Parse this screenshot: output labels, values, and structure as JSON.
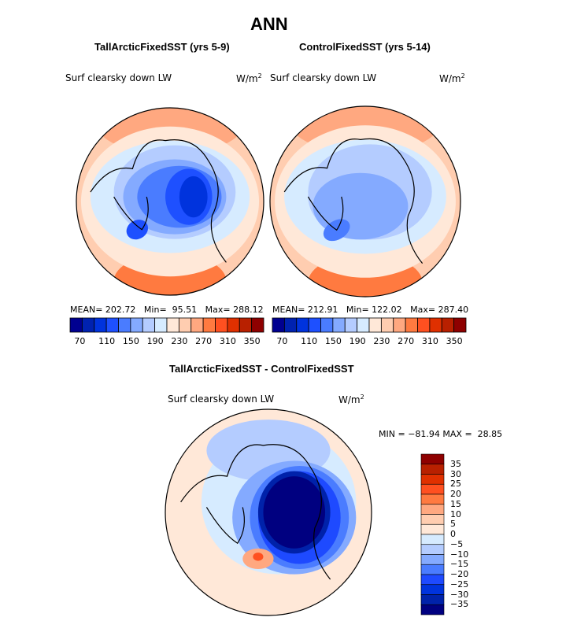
{
  "title": "ANN",
  "panels": [
    {
      "subtitle": "TallArcticFixedSST (yrs 5-9)",
      "variable": "Surf clearsky down LW",
      "units": "W/m",
      "units_sup": "2",
      "stats": {
        "mean_label": "MEAN=",
        "mean": "202.72",
        "min_label": "Min=",
        "min": "95.51",
        "max_label": "Max=",
        "max": "288.12"
      }
    },
    {
      "subtitle": "ControlFixedSST (yrs 5-14)",
      "variable": "Surf clearsky down LW",
      "units": "W/m",
      "units_sup": "2",
      "stats": {
        "mean_label": "MEAN=",
        "mean": "212.91",
        "min_label": "Min=",
        "min": "122.02",
        "max_label": "Max=",
        "max": "287.40"
      }
    }
  ],
  "colorbar_top": {
    "ticks": [
      "70",
      "110",
      "150",
      "190",
      "230",
      "270",
      "310",
      "350"
    ],
    "colors": [
      "#000090",
      "#0022b0",
      "#0033dd",
      "#1e50ff",
      "#4a7cff",
      "#84aaff",
      "#b4ccff",
      "#d6ebff",
      "#ffe8d8",
      "#ffcdb0",
      "#ffa880",
      "#ff7a40",
      "#ff5020",
      "#e03000",
      "#b82000",
      "#8e0000"
    ]
  },
  "difference": {
    "subtitle": "TallArcticFixedSST - ControlFixedSST",
    "variable": "Surf clearsky down LW",
    "units": "W/m",
    "units_sup": "2",
    "min_label": "MIN =",
    "min": "−81.94",
    "max_label": "MAX =",
    "max": "28.85",
    "colorbar": {
      "ticks": [
        "35",
        "30",
        "25",
        "20",
        "15",
        "10",
        "5",
        "0",
        "−5",
        "−10",
        "−15",
        "−20",
        "−25",
        "−30",
        "−35"
      ],
      "colors": [
        "#8e0000",
        "#b82000",
        "#e03000",
        "#ff5020",
        "#ff7a40",
        "#ffa880",
        "#ffcdb0",
        "#ffe8d8",
        "#d6ebff",
        "#b4ccff",
        "#84aaff",
        "#4a7cff",
        "#1e4aff",
        "#0033dd",
        "#0022aa",
        "#000080"
      ]
    }
  }
}
